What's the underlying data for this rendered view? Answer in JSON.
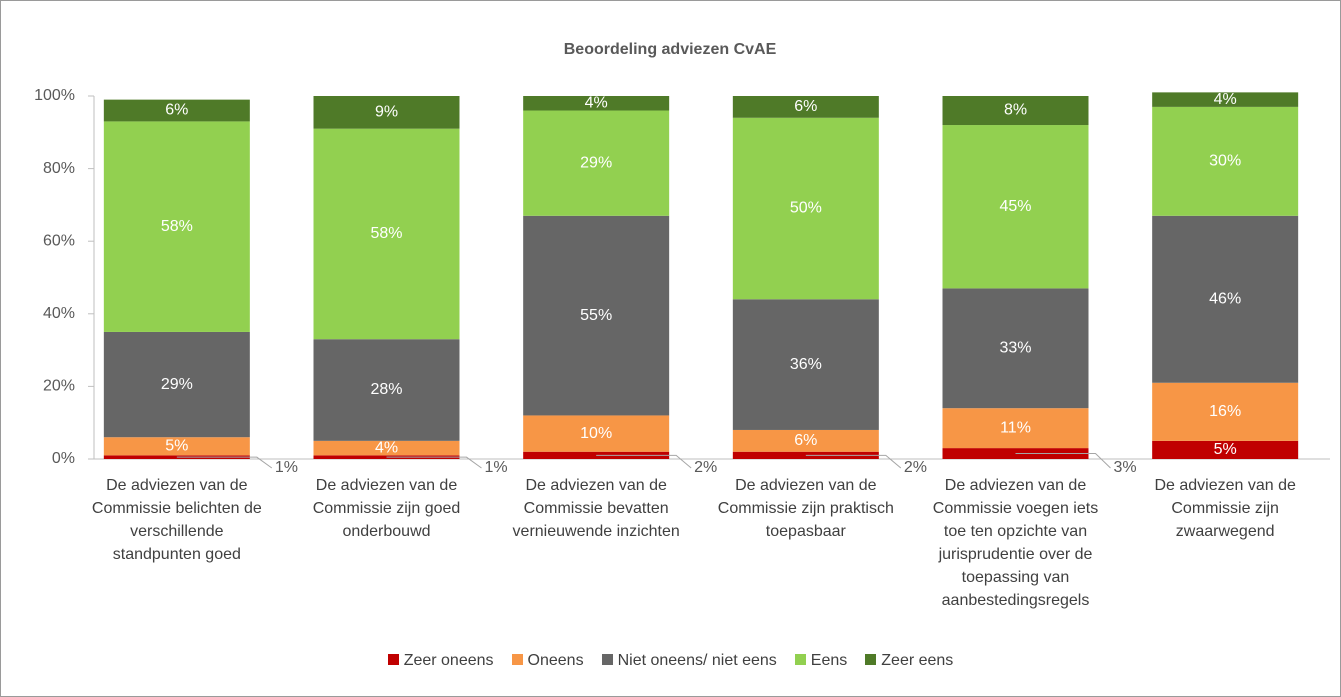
{
  "chart_data": {
    "type": "stacked_bar",
    "title": "Beoordeling adviezen CvAE",
    "categories": [
      "De adviezen van de Commissie belichten de verschillende standpunten goed",
      "De adviezen van de Commissie zijn goed onderbouwd",
      "De adviezen van de Commissie bevatten vernieuwende inzichten",
      "De adviezen van de Commissie zijn praktisch toepasbaar",
      "De adviezen van de Commissie voegen iets toe ten opzichte van jurisprudentie over de toepassing van aanbestedingsregels",
      "De adviezen van de Commissie zijn zwaarwegend"
    ],
    "series": [
      {
        "name": "Zeer oneens",
        "color": "#c00000",
        "values": [
          1,
          1,
          2,
          2,
          3,
          5
        ],
        "value_labels": [
          "1%",
          "1%",
          "2%",
          "2%",
          "3%",
          "5%"
        ]
      },
      {
        "name": "Oneens",
        "color": "#f79646",
        "values": [
          5,
          4,
          10,
          6,
          11,
          16
        ],
        "value_labels": [
          "5%",
          "4%",
          "10%",
          "6%",
          "11%",
          "16%"
        ]
      },
      {
        "name": "Niet oneens/ niet eens",
        "color": "#666666",
        "values": [
          29,
          28,
          55,
          36,
          33,
          46
        ],
        "value_labels": [
          "29%",
          "28%",
          "55%",
          "36%",
          "33%",
          "46%"
        ]
      },
      {
        "name": "Eens",
        "color": "#92d050",
        "values": [
          58,
          58,
          29,
          50,
          45,
          30
        ],
        "value_labels": [
          "58%",
          "58%",
          "29%",
          "50%",
          "45%",
          "30%"
        ]
      },
      {
        "name": "Zeer eens",
        "color": "#4f7a28",
        "values": [
          6,
          9,
          4,
          6,
          8,
          4
        ],
        "value_labels": [
          "6%",
          "9%",
          "4%",
          "6%",
          "8%",
          "4%"
        ]
      }
    ],
    "ylim": [
      0,
      100
    ],
    "yticks": [
      {
        "value": 0,
        "label": "0%"
      },
      {
        "value": 20,
        "label": "20%"
      },
      {
        "value": 40,
        "label": "40%"
      },
      {
        "value": 60,
        "label": "60%"
      },
      {
        "value": 80,
        "label": "80%"
      },
      {
        "value": 100,
        "label": "100%"
      }
    ],
    "legend": "bottom"
  }
}
